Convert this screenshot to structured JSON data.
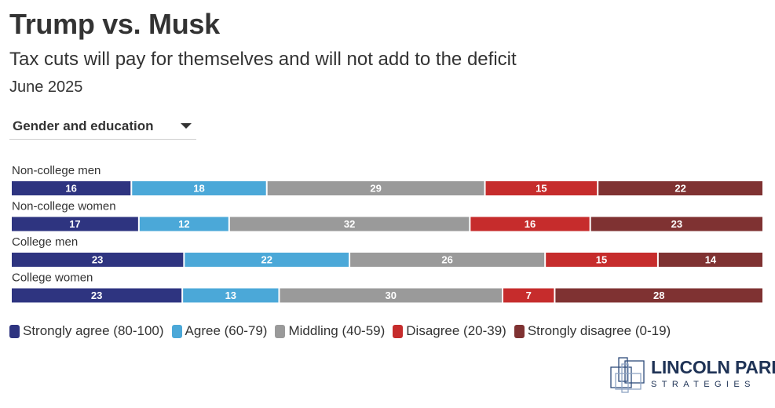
{
  "header": {
    "title": "Trump vs. Musk",
    "subtitle": "Tax cuts will pay for themselves and will not add to the deficit",
    "date": "June 2025"
  },
  "filter": {
    "selected": "Gender and education"
  },
  "colors": {
    "strongly_agree": "#2e3480",
    "agree": "#4ba8d8",
    "middling": "#9a9a9a",
    "disagree": "#c62c2c",
    "strongly_disagree": "#7f3232"
  },
  "chart_data": {
    "type": "bar",
    "orientation": "horizontal",
    "stacked": true,
    "normalized": true,
    "categories": [
      "Non-college men",
      "Non-college women",
      "College men",
      "College women"
    ],
    "series": [
      {
        "name": "Strongly agree (80-100)",
        "color_key": "strongly_agree",
        "values": [
          16,
          17,
          23,
          23
        ]
      },
      {
        "name": "Agree (60-79)",
        "color_key": "agree",
        "values": [
          18,
          12,
          22,
          13
        ]
      },
      {
        "name": "Middling (40-59)",
        "color_key": "middling",
        "values": [
          29,
          32,
          26,
          30
        ]
      },
      {
        "name": "Disagree (20-39)",
        "color_key": "disagree",
        "values": [
          15,
          16,
          15,
          7
        ]
      },
      {
        "name": "Strongly disagree (0-19)",
        "color_key": "strongly_disagree",
        "values": [
          22,
          23,
          14,
          28
        ]
      }
    ],
    "legend_position": "bottom"
  },
  "logo": {
    "name": "LINCOLN PARK",
    "sub": "STRATEGIES",
    "icon": "building-squares-icon"
  }
}
